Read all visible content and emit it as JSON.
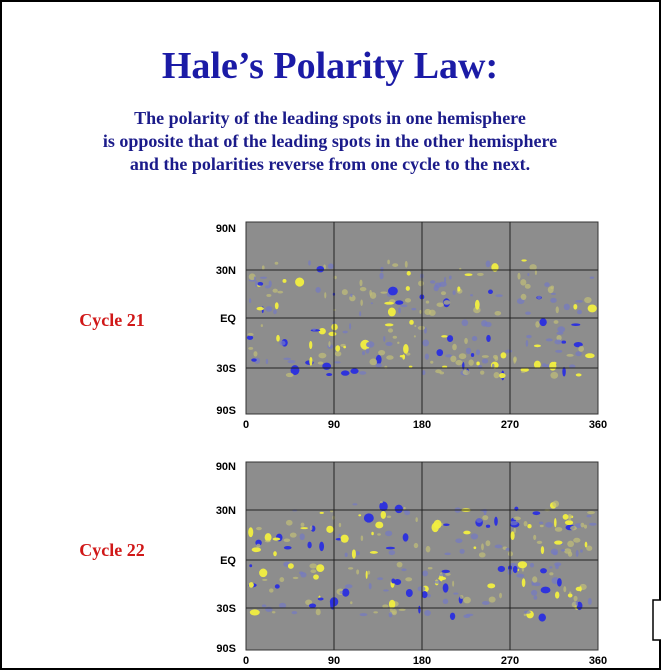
{
  "header": {
    "title": "Hale’s Polarity Law:",
    "subtitle": [
      "The polarity of the leading spots in one hemisphere",
      "is opposite that of the leading spots in the other hemisphere",
      "and the polarities reverse from one cycle to the next."
    ]
  },
  "panels": [
    {
      "label": "Cycle 21",
      "y_labels": [
        "90N",
        "30N",
        "EQ",
        "30S",
        "90S"
      ],
      "x_labels": [
        "0",
        "90",
        "180",
        "270",
        "360"
      ]
    },
    {
      "label": "Cycle 22",
      "y_labels": [
        "90N",
        "30N",
        "EQ",
        "30S",
        "90S"
      ],
      "x_labels": [
        "0",
        "90",
        "180",
        "270",
        "360"
      ]
    }
  ]
}
